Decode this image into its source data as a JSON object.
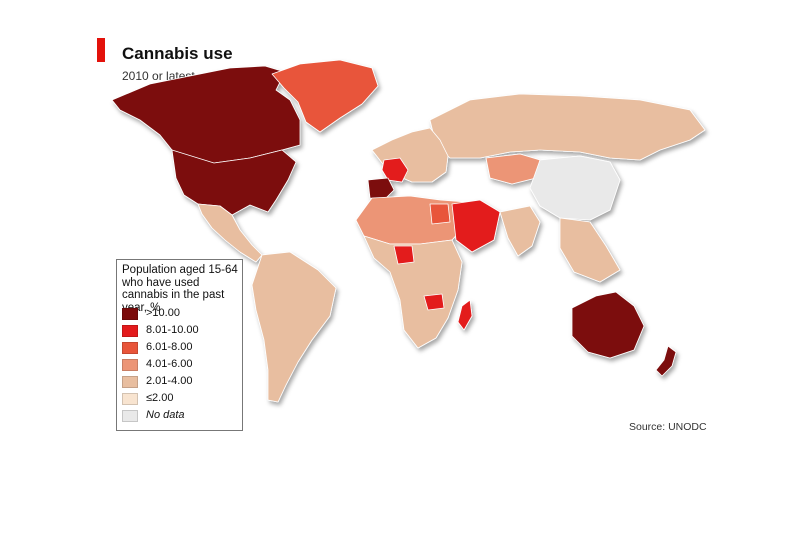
{
  "header": {
    "title": "Cannabis use",
    "subtitle": "2010 or latest",
    "accent_color": "#e3120b"
  },
  "legend": {
    "title": "Population aged 15-64 who have used cannabis in the past year, %",
    "items": [
      {
        "label": ">10.00",
        "color": "#7b0a0a"
      },
      {
        "label": "8.01-10.00",
        "color": "#e31a1c"
      },
      {
        "label": "6.01-8.00",
        "color": "#e8553a"
      },
      {
        "label": "4.01-6.00",
        "color": "#ec9576"
      },
      {
        "label": "2.01-4.00",
        "color": "#e8bea0"
      },
      {
        "label": "≤2.00",
        "color": "#f8e4d0"
      },
      {
        "label": "No data",
        "color": "#e9e9e9"
      }
    ]
  },
  "source": "Source: UNODC",
  "map_regions": [
    {
      "region": "North America (Canada, USA)",
      "category": ">10.00"
    },
    {
      "region": "Greenland",
      "category": "6.01-8.00"
    },
    {
      "region": "Mexico & Central America",
      "category": "2.01-4.00"
    },
    {
      "region": "South America",
      "category": "2.01-4.00"
    },
    {
      "region": "Russia",
      "category": "2.01-4.00"
    },
    {
      "region": "Kazakhstan",
      "category": "4.01-6.00"
    },
    {
      "region": "France",
      "category": "8.01-10.00"
    },
    {
      "region": "Spain",
      "category": ">10.00"
    },
    {
      "region": "Egypt",
      "category": "6.01-8.00"
    },
    {
      "region": "Nigeria",
      "category": "8.01-10.00"
    },
    {
      "region": "Zambia",
      "category": "8.01-10.00"
    },
    {
      "region": "Madagascar",
      "category": "8.01-10.00"
    },
    {
      "region": "Australia",
      "category": ">10.00"
    },
    {
      "region": "New Zealand",
      "category": ">10.00"
    },
    {
      "region": "China",
      "category": "No data"
    },
    {
      "region": "India",
      "category": "2.01-4.00"
    },
    {
      "region": "Southeast Asia",
      "category": "2.01-4.00"
    }
  ]
}
